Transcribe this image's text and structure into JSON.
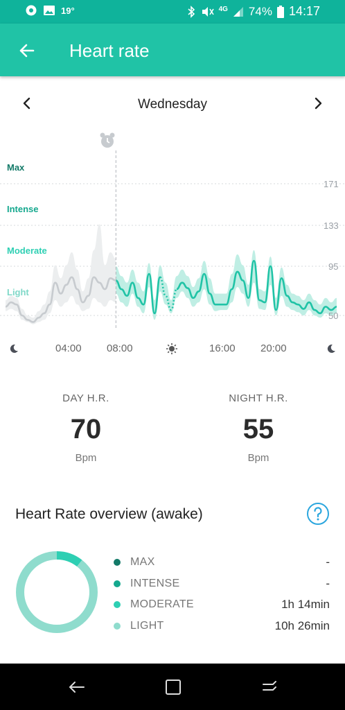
{
  "status_bar": {
    "temperature": "19°",
    "network": "4G",
    "battery": "74%",
    "time": "14:17",
    "icons": [
      "whatsapp-icon",
      "image-icon",
      "bluetooth-icon",
      "mute-vibrate-icon",
      "signal-icon",
      "battery-icon"
    ]
  },
  "app_bar": {
    "title": "Heart rate",
    "back_icon": "arrow-left-icon"
  },
  "day_nav": {
    "day": "Wednesday",
    "prev_icon": "chevron-left-icon",
    "next_icon": "chevron-right-icon"
  },
  "chart_data": {
    "type": "line",
    "zones": [
      "Max",
      "Intense",
      "Moderate",
      "Light"
    ],
    "y_ticks": [
      "171",
      "133",
      "95",
      "50"
    ],
    "x_labels": [
      "04:00",
      "08:00",
      "16:00",
      "20:00"
    ],
    "x_icons": [
      "moon-icon",
      "sun-icon",
      "moon-icon"
    ],
    "marker_icon": "alarm-clock-icon",
    "marker_time": "08:00",
    "colors": {
      "night": "#c7cbcf",
      "day": "#20c3a6",
      "band_day": "#bfeee4",
      "band_night": "#eceeef",
      "zone_max": "#137a68",
      "zone_intense": "#15a88e",
      "zone_moderate": "#2ecfb3",
      "zone_light": "#7fd8c8"
    },
    "series": [
      {
        "x": [
          0,
          0.4,
          0.8,
          1.2,
          1.6,
          2.0,
          2.4,
          2.8,
          3.2,
          3.6,
          4.0,
          4.4,
          4.8,
          5.2,
          5.6,
          6.0,
          6.4,
          6.8,
          7.2,
          7.6,
          8.0
        ],
        "y": [
          58,
          62,
          60,
          50,
          46,
          44,
          48,
          52,
          60,
          80,
          70,
          78,
          85,
          74,
          62,
          68,
          85,
          80,
          74,
          84,
          82
        ]
      },
      {
        "x": [
          8.0,
          8.4,
          8.8,
          9.2,
          9.6,
          10.0,
          10.4,
          10.8,
          11.2,
          11.6,
          12.0,
          12.4,
          12.8,
          13.2,
          13.6,
          14.0,
          14.4,
          14.8,
          15.2,
          15.6,
          16.0,
          16.4,
          16.8,
          17.2,
          17.6,
          18.0,
          18.4,
          18.8,
          19.2,
          19.6,
          20.0,
          20.4,
          20.8,
          21.2,
          21.6,
          22.0,
          22.4,
          22.8,
          23.2,
          23.6,
          24.0
        ],
        "y": [
          82,
          74,
          68,
          80,
          66,
          60,
          88,
          52,
          85,
          68,
          55,
          74,
          80,
          75,
          66,
          72,
          88,
          70,
          60,
          60,
          60,
          74,
          90,
          82,
          66,
          100,
          64,
          62,
          95,
          55,
          84,
          68,
          62,
          60,
          56,
          62,
          55,
          52,
          58,
          55,
          58
        ]
      }
    ],
    "band_day": {
      "lo": [
        70,
        62,
        58,
        70,
        58,
        52,
        76,
        46,
        72,
        60,
        52,
        66,
        72,
        66,
        58,
        62,
        74,
        60,
        54,
        55,
        55,
        62,
        76,
        70,
        58,
        80,
        56,
        55,
        78,
        50,
        68,
        58,
        55,
        53,
        50,
        55,
        50,
        48,
        52,
        50,
        52
      ],
      "hi": [
        95,
        86,
        80,
        92,
        80,
        72,
        98,
        64,
        96,
        80,
        64,
        86,
        92,
        86,
        76,
        84,
        100,
        84,
        70,
        70,
        70,
        88,
        106,
        96,
        78,
        110,
        74,
        72,
        104,
        66,
        94,
        78,
        70,
        68,
        64,
        70,
        64,
        60,
        66,
        62,
        66
      ]
    },
    "band_night": {
      "lo": [
        54,
        56,
        54,
        46,
        44,
        42,
        44,
        46,
        52,
        64,
        58,
        62,
        68,
        60,
        54,
        56,
        66,
        62,
        58,
        64,
        62
      ],
      "hi": [
        64,
        68,
        66,
        56,
        50,
        48,
        54,
        60,
        72,
        96,
        84,
        96,
        108,
        92,
        72,
        84,
        110,
        134,
        96,
        108,
        102
      ]
    },
    "ylim": [
      40,
      190
    ],
    "xlim": [
      0,
      24
    ]
  },
  "stats": {
    "day": {
      "label": "DAY H.R.",
      "value": "70",
      "unit": "Bpm"
    },
    "night": {
      "label": "NIGHT H.R.",
      "value": "55",
      "unit": "Bpm"
    }
  },
  "overview": {
    "title": "Heart Rate overview (awake)",
    "help_icon": "help-circle-icon",
    "donut_fractions": {
      "moderate": 0.106,
      "light": 0.894
    },
    "items": [
      {
        "name": "MAX",
        "duration": "-",
        "color": "#137a68"
      },
      {
        "name": "INTENSE",
        "duration": "-",
        "color": "#15a88e"
      },
      {
        "name": "MODERATE",
        "duration": "1h 14min",
        "color": "#2ecfb3"
      },
      {
        "name": "LIGHT",
        "duration": "10h 26min",
        "color": "#8fdccd"
      }
    ]
  },
  "nav_bar": {
    "icons": [
      "back-icon",
      "home-icon",
      "recents-icon"
    ]
  }
}
